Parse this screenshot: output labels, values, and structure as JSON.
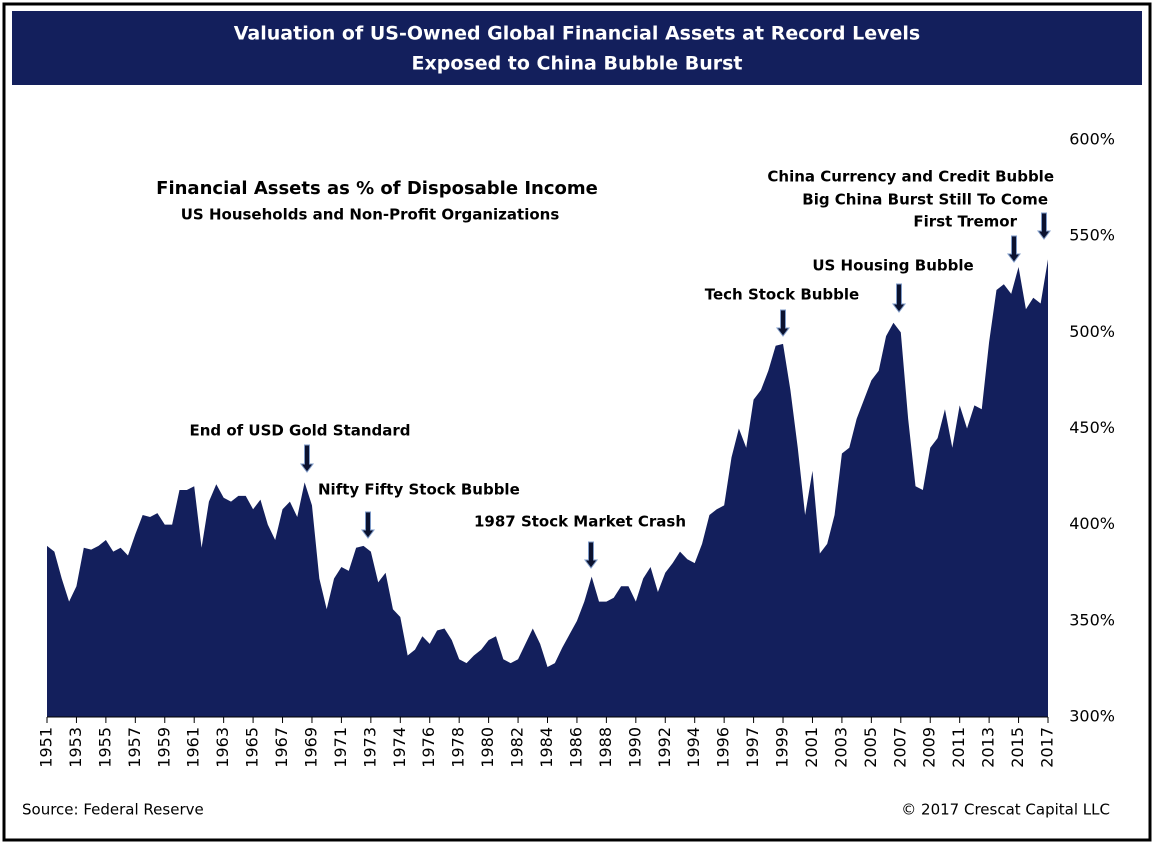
{
  "chart_data": {
    "type": "area",
    "title": "Valuation of US-Owned Global Financial Assets at Record Levels",
    "title_line2": "Exposed to China Bubble Burst",
    "subtitle": "Financial Assets as % of Disposable Income",
    "subtitle_line2": "US Households and Non-Profit Organizations",
    "source": "Source: Federal Reserve",
    "copyright": "© 2017 Crescat Capital LLC",
    "color": "#131f5c",
    "ylim": [
      300,
      600
    ],
    "yticks": [
      {
        "value": 300,
        "label": "300%"
      },
      {
        "value": 350,
        "label": "350%"
      },
      {
        "value": 400,
        "label": "400%"
      },
      {
        "value": 450,
        "label": "450%"
      },
      {
        "value": 500,
        "label": "500%"
      },
      {
        "value": 550,
        "label": "550%"
      },
      {
        "value": 600,
        "label": "600%"
      }
    ],
    "annotations": [
      "End of USD Gold Standard",
      "Nifty Fifty Stock Bubble",
      "1987 Stock Market Crash",
      "Tech Stock Bubble",
      "US Housing Bubble",
      "China Currency and Credit Bubble",
      "Big China Burst Still To Come",
      "First Tremor"
    ],
    "categories": [
      "1951",
      null,
      null,
      null,
      "1953",
      null,
      null,
      null,
      "1955",
      null,
      null,
      null,
      "1957",
      null,
      null,
      null,
      "1959",
      null,
      null,
      null,
      "1961",
      null,
      null,
      null,
      "1963",
      null,
      null,
      null,
      "1965",
      null,
      null,
      null,
      "1967",
      null,
      null,
      null,
      "1969",
      null,
      null,
      null,
      "1971",
      null,
      null,
      null,
      "1973",
      null,
      null,
      null,
      "1974",
      null,
      null,
      null,
      "1976",
      null,
      null,
      null,
      "1978",
      null,
      null,
      null,
      "1980",
      null,
      null,
      null,
      "1982",
      null,
      null,
      null,
      "1984",
      null,
      null,
      null,
      "1986",
      null,
      null,
      null,
      "1988",
      null,
      null,
      null,
      "1990",
      null,
      null,
      null,
      "1992",
      null,
      null,
      null,
      "1994",
      null,
      null,
      null,
      "1996",
      null,
      null,
      null,
      "1997",
      null,
      null,
      null,
      "1999",
      null,
      null,
      null,
      "2001",
      null,
      null,
      null,
      "2003",
      null,
      null,
      null,
      "2005",
      null,
      null,
      null,
      "2007",
      null,
      null,
      null,
      "2009",
      null,
      null,
      null,
      "2011",
      null,
      null,
      null,
      "2013",
      null,
      null,
      null,
      "2015",
      null,
      null,
      null,
      "2017"
    ],
    "values": [
      389,
      386,
      372,
      360,
      368,
      388,
      387,
      389,
      392,
      386,
      388,
      384,
      395,
      405,
      404,
      406,
      400,
      400,
      418,
      418,
      420,
      388,
      412,
      421,
      414,
      412,
      415,
      415,
      408,
      413,
      400,
      392,
      408,
      412,
      404,
      422,
      410,
      372,
      356,
      372,
      378,
      376,
      388,
      389,
      386,
      370,
      375,
      356,
      352,
      332,
      335,
      342,
      338,
      345,
      346,
      340,
      330,
      328,
      332,
      335,
      340,
      342,
      330,
      328,
      330,
      338,
      346,
      338,
      326,
      328,
      336,
      343,
      350,
      360,
      373,
      360,
      360,
      362,
      368,
      368,
      360,
      372,
      378,
      365,
      375,
      380,
      386,
      382,
      380,
      390,
      405,
      408,
      410,
      435,
      450,
      440,
      465,
      470,
      480,
      493,
      494,
      470,
      440,
      405,
      428,
      385,
      390,
      405,
      437,
      440,
      455,
      465,
      475,
      480,
      498,
      505,
      500,
      455,
      420,
      418,
      440,
      445,
      460,
      440,
      462,
      450,
      462,
      460,
      495,
      522,
      525,
      520,
      534,
      512,
      518,
      515,
      538
    ]
  }
}
